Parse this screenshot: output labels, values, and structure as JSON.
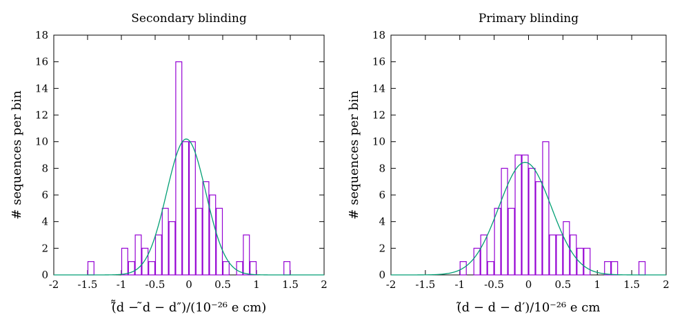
{
  "chart_data": [
    {
      "type": "bar",
      "title": "Secondary blinding",
      "xlabel": "(̃̃d − ̃d − d″)/(10⁻²⁶ e cm)",
      "ylabel": "# sequences per bin",
      "xlim": [
        -2,
        2
      ],
      "ylim": [
        0,
        18
      ],
      "xticks": [
        "-2",
        "-1.5",
        "-1",
        "-0.5",
        "0",
        "0.5",
        "1",
        "1.5",
        "2"
      ],
      "yticks": [
        "0",
        "2",
        "4",
        "6",
        "8",
        "10",
        "12",
        "14",
        "16",
        "18"
      ],
      "bin_width": 0.1,
      "bars": [
        {
          "x": -1.45,
          "y": 1
        },
        {
          "x": -0.95,
          "y": 2
        },
        {
          "x": -0.85,
          "y": 1
        },
        {
          "x": -0.75,
          "y": 3
        },
        {
          "x": -0.65,
          "y": 2
        },
        {
          "x": -0.55,
          "y": 1
        },
        {
          "x": -0.45,
          "y": 3
        },
        {
          "x": -0.35,
          "y": 5
        },
        {
          "x": -0.25,
          "y": 4
        },
        {
          "x": -0.15,
          "y": 16
        },
        {
          "x": -0.05,
          "y": 10
        },
        {
          "x": 0.05,
          "y": 10
        },
        {
          "x": 0.15,
          "y": 5
        },
        {
          "x": 0.25,
          "y": 7
        },
        {
          "x": 0.35,
          "y": 6
        },
        {
          "x": 0.45,
          "y": 5
        },
        {
          "x": 0.55,
          "y": 1
        },
        {
          "x": 0.75,
          "y": 1
        },
        {
          "x": 0.85,
          "y": 3
        },
        {
          "x": 0.95,
          "y": 1
        },
        {
          "x": 1.45,
          "y": 1
        }
      ],
      "fit": {
        "type": "gaussian",
        "amplitude": 10.2,
        "mean": -0.04,
        "sigma": 0.29
      },
      "colors": {
        "bars": "#9400d3",
        "fit": "#009e73"
      }
    },
    {
      "type": "bar",
      "title": "Primary blinding",
      "xlabel": "(̃d − d − d′)/10⁻²⁶ e cm",
      "ylabel": "# sequences per bin",
      "xlim": [
        -2,
        2
      ],
      "ylim": [
        0,
        18
      ],
      "xticks": [
        "-2",
        "-1.5",
        "-1",
        "-0.5",
        "0",
        "0.5",
        "1",
        "1.5",
        "2"
      ],
      "yticks": [
        "0",
        "2",
        "4",
        "6",
        "8",
        "10",
        "12",
        "14",
        "16",
        "18"
      ],
      "bin_width": 0.1,
      "bars": [
        {
          "x": -0.95,
          "y": 1
        },
        {
          "x": -0.75,
          "y": 2
        },
        {
          "x": -0.65,
          "y": 3
        },
        {
          "x": -0.55,
          "y": 1
        },
        {
          "x": -0.45,
          "y": 5
        },
        {
          "x": -0.35,
          "y": 8
        },
        {
          "x": -0.25,
          "y": 5
        },
        {
          "x": -0.15,
          "y": 9
        },
        {
          "x": -0.05,
          "y": 9
        },
        {
          "x": 0.05,
          "y": 8
        },
        {
          "x": 0.15,
          "y": 7
        },
        {
          "x": 0.25,
          "y": 10
        },
        {
          "x": 0.35,
          "y": 3
        },
        {
          "x": 0.45,
          "y": 3
        },
        {
          "x": 0.55,
          "y": 4
        },
        {
          "x": 0.65,
          "y": 3
        },
        {
          "x": 0.75,
          "y": 2
        },
        {
          "x": 0.85,
          "y": 2
        },
        {
          "x": 1.15,
          "y": 1
        },
        {
          "x": 1.25,
          "y": 1
        },
        {
          "x": 1.65,
          "y": 1
        }
      ],
      "fit": {
        "type": "gaussian",
        "amplitude": 8.45,
        "mean": -0.05,
        "sigma": 0.38
      },
      "colors": {
        "bars": "#9400d3",
        "fit": "#009e73"
      }
    }
  ]
}
